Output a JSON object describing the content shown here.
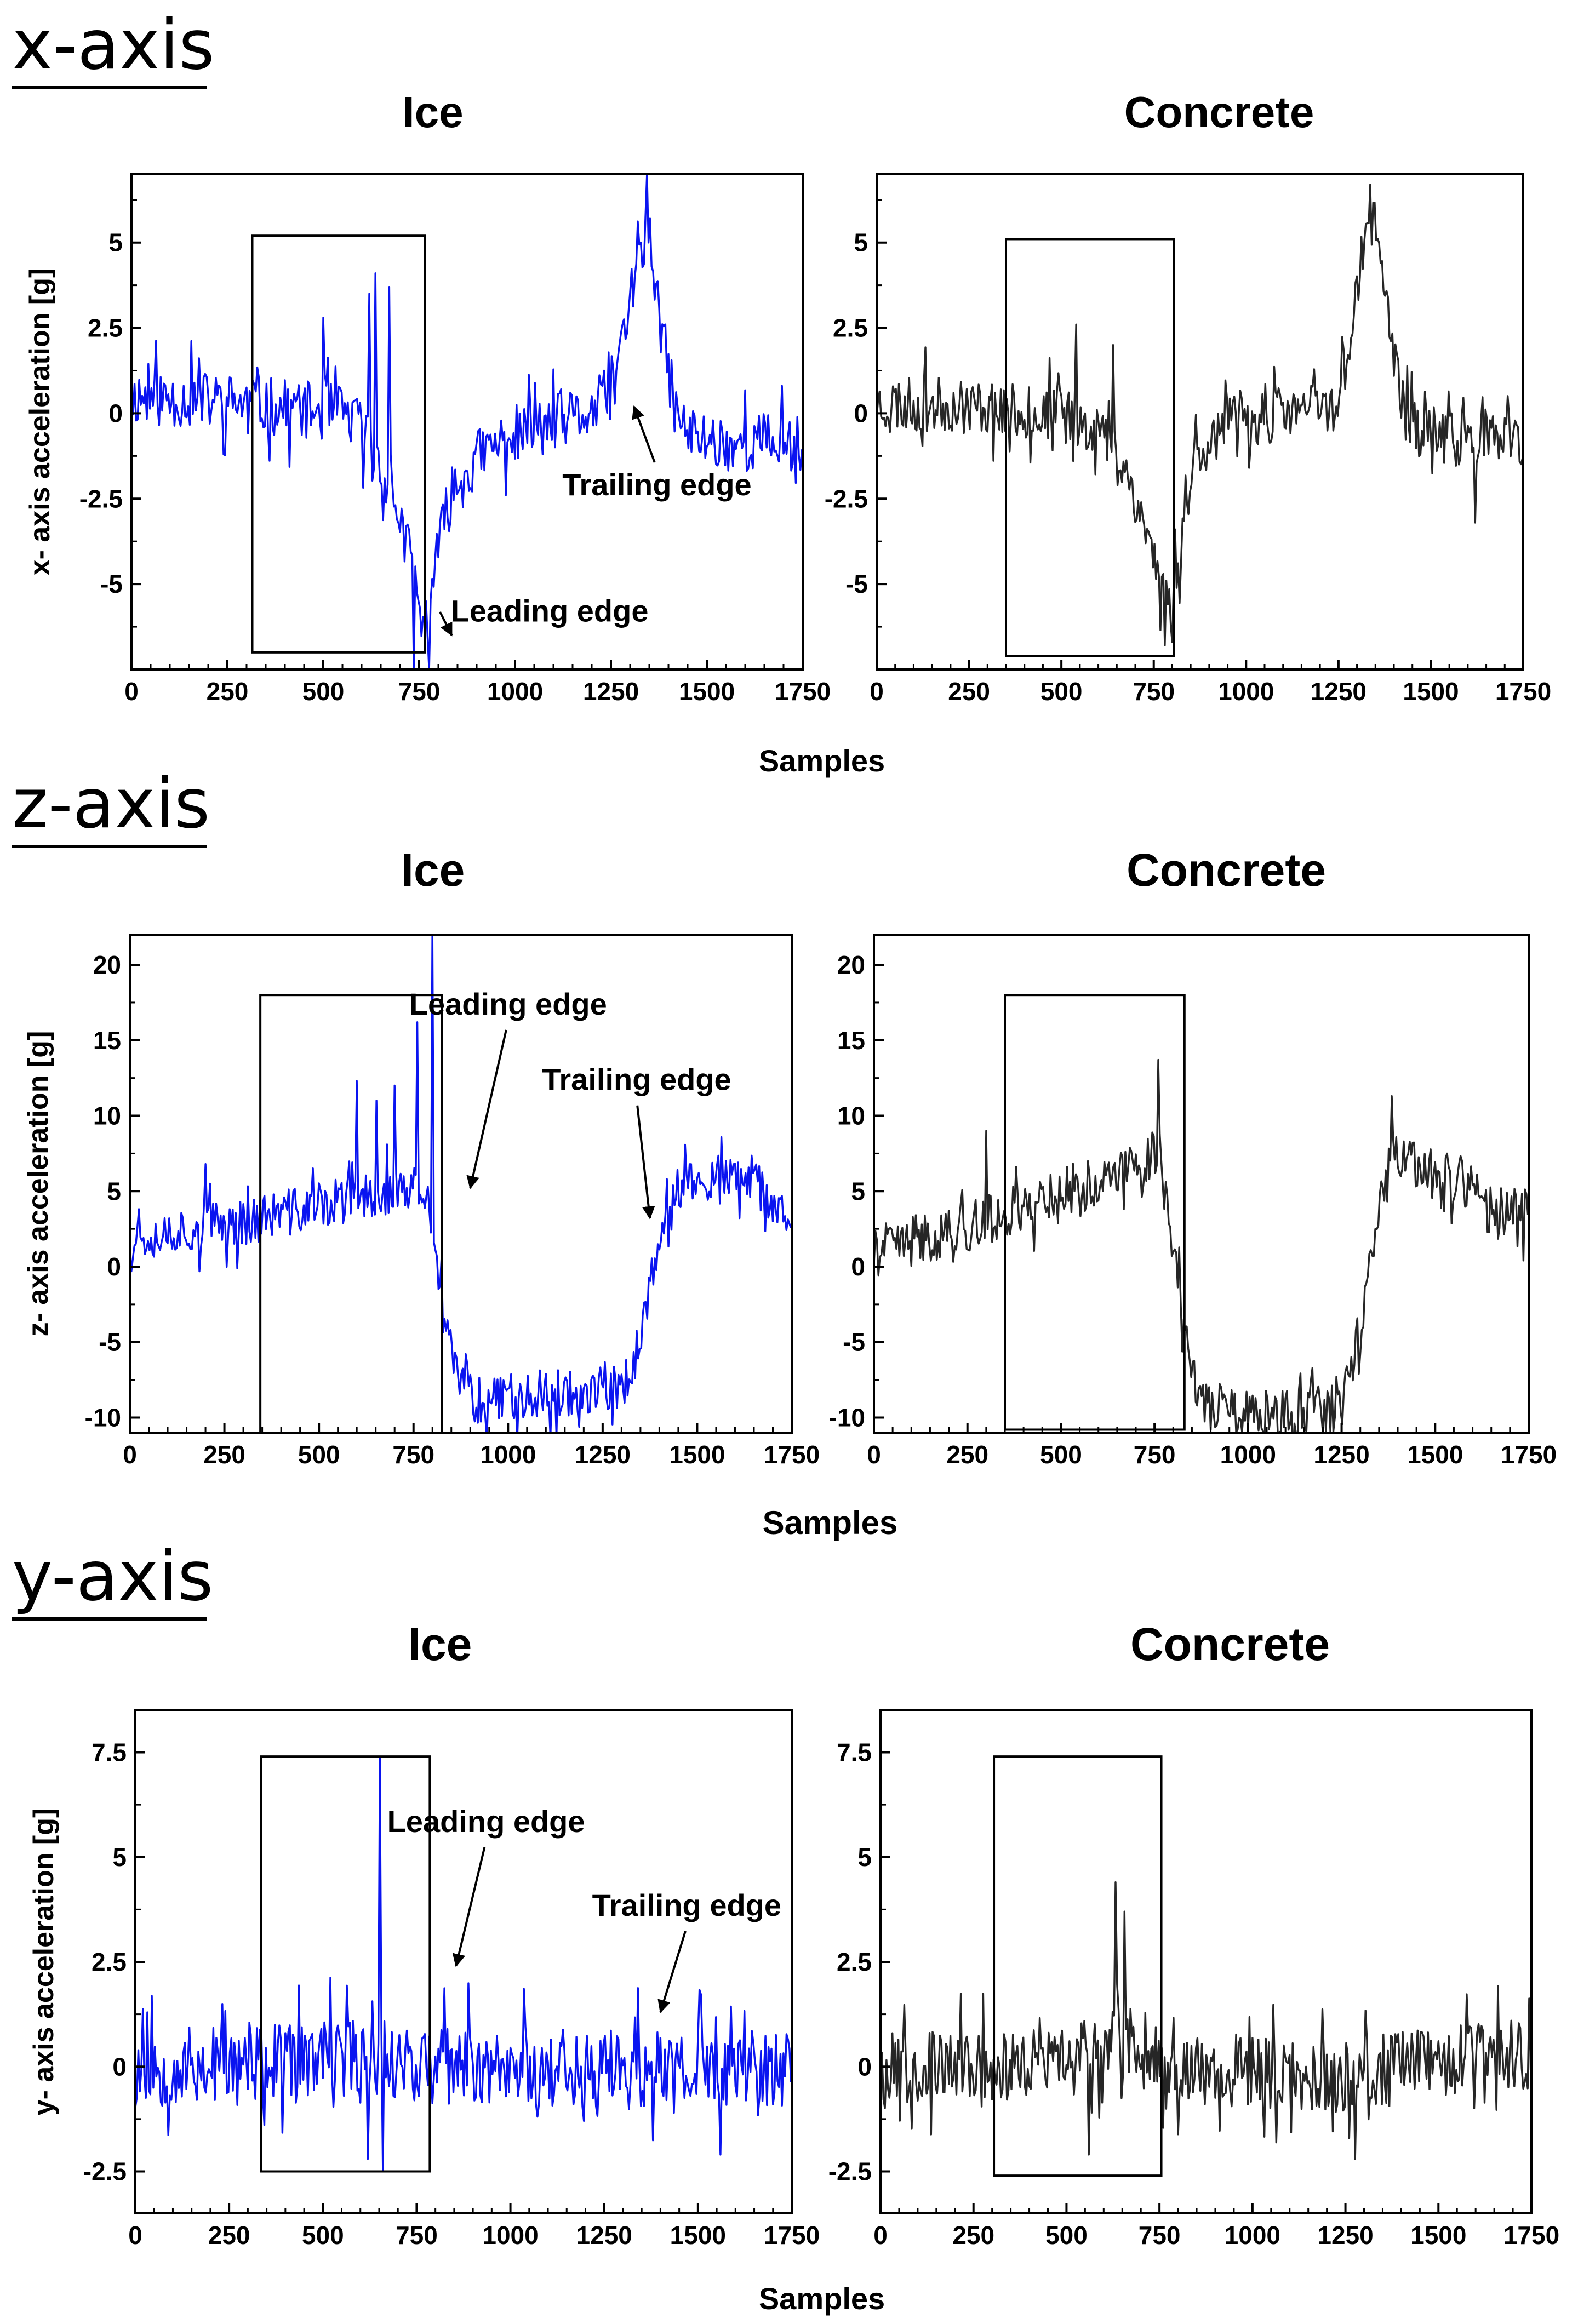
{
  "colors": {
    "ice": "#0a14f0",
    "concrete": "#262626",
    "axis": "#000000"
  },
  "sections": [
    {
      "heading": "x-axis",
      "shared_xlabel": "Samples"
    },
    {
      "heading": "z-axis",
      "shared_xlabel": "Samples"
    },
    {
      "heading": "y-axis",
      "shared_xlabel": "Samples"
    }
  ],
  "chart_data": [
    {
      "type": "line",
      "title": "Ice",
      "ylabel": "x- axis acceleration [g]",
      "xlim": [
        0,
        1750
      ],
      "ylim": [
        -7.5,
        7
      ],
      "xticks": [
        "0",
        "250",
        "500",
        "750",
        "1000",
        "1250",
        "1500",
        "1750"
      ],
      "yticks": [
        "5",
        "2.5",
        "0",
        "-2.5",
        "-5"
      ],
      "ytick_values": [
        5,
        2.5,
        0,
        -2.5,
        -5
      ],
      "color": "ice",
      "keypoints": [
        [
          0,
          0.5
        ],
        [
          300,
          0.3
        ],
        [
          350,
          0.2
        ],
        [
          450,
          0.1
        ],
        [
          550,
          0
        ],
        [
          600,
          -0.4
        ],
        [
          650,
          -1.5
        ],
        [
          700,
          -3
        ],
        [
          740,
          -5
        ],
        [
          760,
          -6.5
        ],
        [
          790,
          -4.5
        ],
        [
          830,
          -2.5
        ],
        [
          900,
          -1.3
        ],
        [
          1000,
          -0.6
        ],
        [
          1100,
          -0.3
        ],
        [
          1200,
          0
        ],
        [
          1260,
          0.8
        ],
        [
          1300,
          3.5
        ],
        [
          1330,
          4.8
        ],
        [
          1345,
          5.5
        ],
        [
          1380,
          2.5
        ],
        [
          1420,
          0
        ],
        [
          1450,
          -0.6
        ],
        [
          1550,
          -0.9
        ],
        [
          1650,
          -0.8
        ],
        [
          1750,
          -0.9
        ]
      ],
      "noise": 0.85,
      "seed": 11,
      "spikes": [
        [
          500,
          2.8
        ],
        [
          620,
          3.5
        ],
        [
          635,
          4.1
        ],
        [
          670,
          3.7
        ],
        [
          1345,
          7.0
        ],
        [
          735,
          -7.5
        ],
        [
          775,
          -7.5
        ]
      ],
      "highlight_box": {
        "x": [
          315,
          765
        ],
        "y": [
          -7,
          5.2
        ]
      },
      "annotations": [
        {
          "text": "Trailing edge",
          "tail": [
            1370,
            -2.4
          ],
          "head": [
            1310,
            0.2
          ]
        },
        {
          "text": "Leading edge",
          "tail": [
            1090,
            -6.1
          ],
          "head": [
            835,
            -6.5
          ]
        }
      ]
    },
    {
      "type": "line",
      "title": "Concrete",
      "ylabel": "",
      "xlim": [
        0,
        1750
      ],
      "ylim": [
        -7.5,
        7
      ],
      "xticks": [
        "0",
        "250",
        "500",
        "750",
        "1000",
        "1250",
        "1500",
        "1750"
      ],
      "yticks": [
        "5",
        "2.5",
        "0",
        "-2.5",
        "-5"
      ],
      "ytick_values": [
        5,
        2.5,
        0,
        -2.5,
        -5
      ],
      "color": "concrete",
      "keypoints": [
        [
          0,
          0.3
        ],
        [
          300,
          0.2
        ],
        [
          400,
          0
        ],
        [
          500,
          0
        ],
        [
          600,
          -0.4
        ],
        [
          680,
          -1.8
        ],
        [
          740,
          -3.8
        ],
        [
          790,
          -5.8
        ],
        [
          820,
          -4
        ],
        [
          860,
          -1.2
        ],
        [
          950,
          -0.3
        ],
        [
          1100,
          0
        ],
        [
          1250,
          0.3
        ],
        [
          1300,
          3.5
        ],
        [
          1330,
          5.7
        ],
        [
          1360,
          5.2
        ],
        [
          1400,
          1.5
        ],
        [
          1440,
          -0.4
        ],
        [
          1550,
          -0.7
        ],
        [
          1650,
          -0.8
        ],
        [
          1750,
          -0.9
        ]
      ],
      "noise": 0.8,
      "seed": 23,
      "spikes": [
        [
          540,
          2.6
        ],
        [
          640,
          2
        ],
        [
          1335,
          6.7
        ],
        [
          800,
          -6.7
        ],
        [
          1620,
          -3.2
        ]
      ],
      "highlight_box": {
        "x": [
          350,
          805
        ],
        "y": [
          -7.1,
          5.1
        ]
      },
      "annotations": []
    },
    {
      "type": "line",
      "title": "Ice",
      "ylabel": "z- axis acceleration [g]",
      "xlim": [
        0,
        1750
      ],
      "ylim": [
        -11,
        22
      ],
      "xticks": [
        "0",
        "250",
        "500",
        "750",
        "1000",
        "1250",
        "1500",
        "1750"
      ],
      "yticks": [
        "20",
        "15",
        "10",
        "5",
        "0",
        "-5",
        "-10"
      ],
      "ytick_values": [
        20,
        15,
        10,
        5,
        0,
        -5,
        -10
      ],
      "color": "ice",
      "keypoints": [
        [
          0,
          2
        ],
        [
          300,
          3
        ],
        [
          400,
          3.5
        ],
        [
          500,
          4
        ],
        [
          600,
          4.5
        ],
        [
          700,
          5
        ],
        [
          770,
          5
        ],
        [
          800,
          3
        ],
        [
          830,
          -4
        ],
        [
          870,
          -7.5
        ],
        [
          920,
          -8.8
        ],
        [
          1000,
          -8.5
        ],
        [
          1300,
          -8.2
        ],
        [
          1330,
          -6.5
        ],
        [
          1380,
          -1
        ],
        [
          1420,
          2.5
        ],
        [
          1450,
          5.5
        ],
        [
          1550,
          5.8
        ],
        [
          1650,
          5.5
        ],
        [
          1700,
          4
        ],
        [
          1750,
          3.5
        ]
      ],
      "noise": 1.6,
      "seed": 37,
      "spikes": [
        [
          600,
          12.3
        ],
        [
          650,
          11
        ],
        [
          700,
          12
        ],
        [
          760,
          16.2
        ],
        [
          800,
          22.4
        ],
        [
          200,
          6.8
        ]
      ],
      "highlight_box": {
        "x": [
          345,
          825
        ],
        "y": [
          -11,
          18
        ]
      },
      "annotations": [
        {
          "text": "Leading edge",
          "tail": [
            1000,
            16.7
          ],
          "head": [
            900,
            5.2
          ]
        },
        {
          "text": "Trailing edge",
          "tail": [
            1340,
            11.7
          ],
          "head": [
            1375,
            3.2
          ]
        }
      ]
    },
    {
      "type": "line",
      "title": "Concrete",
      "ylabel": "",
      "xlim": [
        0,
        1750
      ],
      "ylim": [
        -11,
        22
      ],
      "xticks": [
        "0",
        "250",
        "500",
        "750",
        "1000",
        "1250",
        "1500",
        "1750"
      ],
      "yticks": [
        "20",
        "15",
        "10",
        "5",
        "0",
        "-5",
        "-10"
      ],
      "ytick_values": [
        20,
        15,
        10,
        5,
        0,
        -5,
        -10
      ],
      "color": "concrete",
      "keypoints": [
        [
          0,
          1
        ],
        [
          300,
          3
        ],
        [
          400,
          4
        ],
        [
          500,
          5
        ],
        [
          600,
          5.5
        ],
        [
          700,
          6.5
        ],
        [
          760,
          8
        ],
        [
          790,
          4
        ],
        [
          830,
          -5
        ],
        [
          880,
          -9
        ],
        [
          1000,
          -10
        ],
        [
          1250,
          -9.5
        ],
        [
          1300,
          -4
        ],
        [
          1340,
          2
        ],
        [
          1380,
          7
        ],
        [
          1450,
          6.5
        ],
        [
          1600,
          5.5
        ],
        [
          1650,
          3.5
        ],
        [
          1750,
          3.5
        ]
      ],
      "noise": 1.7,
      "seed": 41,
      "spikes": [
        [
          300,
          9
        ],
        [
          760,
          13.7
        ],
        [
          1385,
          11.3
        ]
      ],
      "highlight_box": {
        "x": [
          350,
          830
        ],
        "y": [
          -10.8,
          18
        ]
      },
      "annotations": []
    },
    {
      "type": "line",
      "title": "Ice",
      "ylabel": "y- axis acceleration [g]",
      "xlim": [
        0,
        1750
      ],
      "ylim": [
        -3.5,
        8.5
      ],
      "xticks": [
        "0",
        "250",
        "500",
        "750",
        "1000",
        "1250",
        "1500",
        "1750"
      ],
      "yticks": [
        "7.5",
        "5",
        "2.5",
        "0",
        "-2.5"
      ],
      "ytick_values": [
        7.5,
        5,
        2.5,
        0,
        -2.5
      ],
      "color": "ice",
      "keypoints": [
        [
          0,
          0
        ],
        [
          300,
          0
        ],
        [
          500,
          0.1
        ],
        [
          600,
          0.3
        ],
        [
          700,
          0.2
        ],
        [
          800,
          0
        ],
        [
          1000,
          0
        ],
        [
          1500,
          -0.1
        ],
        [
          1750,
          0
        ]
      ],
      "noise": 0.95,
      "seed": 53,
      "spikes": [
        [
          650,
          7.4
        ],
        [
          660,
          -2.5
        ],
        [
          620,
          -2.2
        ],
        [
          1560,
          -2.1
        ]
      ],
      "highlight_box": {
        "x": [
          335,
          785
        ],
        "y": [
          -2.5,
          7.4
        ]
      },
      "annotations": [
        {
          "text": "Leading edge",
          "tail": [
            935,
            5.6
          ],
          "head": [
            855,
            2.4
          ]
        },
        {
          "text": "Trailing edge",
          "tail": [
            1470,
            3.6
          ],
          "head": [
            1400,
            1.3
          ]
        }
      ]
    },
    {
      "type": "line",
      "title": "Concrete",
      "ylabel": "",
      "xlim": [
        0,
        1750
      ],
      "ylim": [
        -3.5,
        8.5
      ],
      "xticks": [
        "0",
        "250",
        "500",
        "750",
        "1000",
        "1250",
        "1500",
        "1750"
      ],
      "yticks": [
        "7.5",
        "5",
        "2.5",
        "0",
        "-2.5"
      ],
      "ytick_values": [
        7.5,
        5,
        2.5,
        0,
        -2.5
      ],
      "color": "concrete",
      "keypoints": [
        [
          0,
          0
        ],
        [
          300,
          0
        ],
        [
          500,
          0.1
        ],
        [
          620,
          0.6
        ],
        [
          680,
          0.4
        ],
        [
          800,
          0
        ],
        [
          1000,
          -0.1
        ],
        [
          1200,
          -0.3
        ],
        [
          1400,
          0
        ],
        [
          1750,
          0.3
        ]
      ],
      "noise": 0.85,
      "seed": 67,
      "spikes": [
        [
          630,
          4.4
        ],
        [
          655,
          3.7
        ],
        [
          560,
          -2.1
        ],
        [
          1275,
          -2.2
        ]
      ],
      "highlight_box": {
        "x": [
          305,
          755
        ],
        "y": [
          -2.6,
          7.4
        ]
      },
      "annotations": []
    }
  ]
}
